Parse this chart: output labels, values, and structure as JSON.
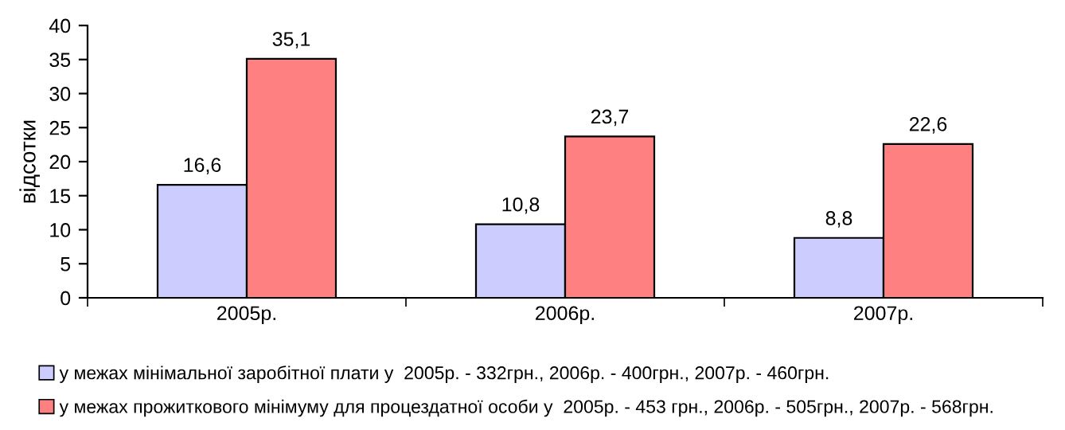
{
  "chart_data": {
    "type": "bar",
    "ylabel": "відсотки",
    "categories": [
      "2005р.",
      "2006р.",
      "2007р."
    ],
    "series": [
      {
        "name": "у межах мінімальної заробітної плати у  2005р. - 332грн., 2006р. - 400грн., 2007р. - 460грн.",
        "color": "#ccccff",
        "values": [
          16.6,
          10.8,
          8.8
        ],
        "value_labels": [
          "16,6",
          "10,8",
          "8,8"
        ]
      },
      {
        "name": "у межах прожиткового мінімуму для процездатної особи у  2005р. - 453 грн., 2006р. - 505грн., 2007р. - 568грн.",
        "color": "#ff8080",
        "values": [
          35.1,
          23.7,
          22.6
        ],
        "value_labels": [
          "35,1",
          "23,7",
          "22,6"
        ]
      }
    ],
    "ylim": [
      0,
      40
    ],
    "yticks": [
      0,
      5,
      10,
      15,
      20,
      25,
      30,
      35,
      40
    ],
    "grid": false,
    "legend": "bottom"
  }
}
